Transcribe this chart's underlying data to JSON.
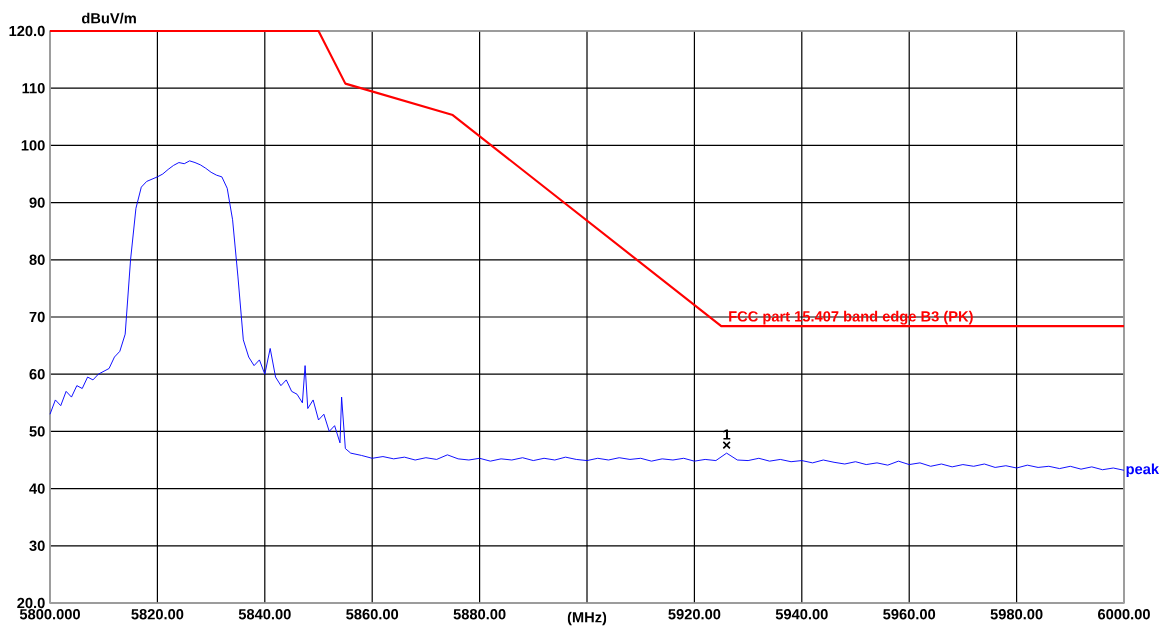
{
  "chart_data": {
    "type": "line",
    "xlabel": "(MHz)",
    "ylabel": "dBuV/m",
    "xlim": [
      5800,
      6000
    ],
    "ylim": [
      20,
      120
    ],
    "xticks": [
      {
        "value": 5800,
        "label": "5800.000"
      },
      {
        "value": 5820,
        "label": "5820.00"
      },
      {
        "value": 5840,
        "label": "5840.00"
      },
      {
        "value": 5860,
        "label": "5860.00"
      },
      {
        "value": 5880,
        "label": "5880.00"
      },
      {
        "value": 5900,
        "label": null
      },
      {
        "value": 5920,
        "label": "5920.00"
      },
      {
        "value": 5940,
        "label": "5940.00"
      },
      {
        "value": 5960,
        "label": "5960.00"
      },
      {
        "value": 5980,
        "label": "5980.00"
      },
      {
        "value": 6000,
        "label": "6000.00"
      }
    ],
    "yticks": [
      {
        "value": 20,
        "label": "20.0"
      },
      30,
      40,
      50,
      60,
      70,
      80,
      90,
      100,
      110,
      {
        "value": 120,
        "label": "120.0"
      }
    ],
    "grid": true,
    "marker": "none",
    "series": [
      {
        "name": "1",
        "type": "scatter",
        "marker": "cross",
        "color": "#000000",
        "x": [
          5926
        ],
        "values": [
          47.6
        ]
      },
      {
        "name": "FCC part 15.407 band edge B3 (PK)",
        "color": "#ff0000",
        "x": [
          5800,
          5850,
          5855,
          5875,
          5925,
          6000
        ],
        "values": [
          120,
          120,
          110.8,
          105.3,
          68.4,
          68.4
        ]
      },
      {
        "name": "peak",
        "color": "#0000ff",
        "x": [
          5800,
          5801,
          5802,
          5803,
          5804,
          5805,
          5806,
          5807,
          5808,
          5809,
          5810,
          5811,
          5812,
          5813,
          5814,
          5815,
          5816,
          5817,
          5818,
          5820,
          5821,
          5822,
          5823,
          5824,
          5825,
          5826,
          5827,
          5828,
          5829,
          5830,
          5831,
          5832,
          5833,
          5834,
          5835,
          5836,
          5837,
          5838,
          5839,
          5840,
          5841,
          5842,
          5843,
          5844,
          5845,
          5846,
          5847,
          5847.5,
          5848,
          5849,
          5850,
          5851,
          5852,
          5853,
          5854,
          5854.3,
          5855,
          5856,
          5858,
          5860,
          5862,
          5864,
          5866,
          5868,
          5870,
          5872,
          5874,
          5876,
          5878,
          5880,
          5882,
          5884,
          5886,
          5888,
          5890,
          5892,
          5894,
          5896,
          5898,
          5900,
          5902,
          5904,
          5906,
          5908,
          5910,
          5912,
          5914,
          5916,
          5918,
          5920,
          5922,
          5924,
          5926,
          5928,
          5930,
          5932,
          5934,
          5936,
          5938,
          5940,
          5942,
          5944,
          5946,
          5948,
          5950,
          5952,
          5954,
          5956,
          5958,
          5960,
          5962,
          5964,
          5966,
          5968,
          5970,
          5972,
          5974,
          5976,
          5978,
          5980,
          5982,
          5984,
          5986,
          5988,
          5990,
          5992,
          5994,
          5996,
          5998,
          6000
        ],
        "values": [
          53.0,
          55.5,
          54.5,
          57,
          56,
          58,
          57.5,
          59.5,
          59,
          60,
          60.5,
          61,
          63,
          64,
          67,
          80,
          89,
          92.7,
          93.7,
          94.5,
          95,
          95.8,
          96.5,
          97,
          96.8,
          97.3,
          97,
          96.6,
          96,
          95.3,
          94.8,
          94.5,
          92.5,
          87,
          77,
          66,
          63,
          61.5,
          62.5,
          60,
          64.5,
          59.5,
          58,
          59,
          57,
          56.5,
          55,
          61.5,
          54,
          55.5,
          52,
          53,
          50,
          51,
          48,
          56,
          47,
          46.2,
          45.8,
          45.3,
          45.6,
          45.2,
          45.5,
          45.0,
          45.4,
          45.1,
          45.9,
          45.2,
          45.0,
          45.3,
          44.8,
          45.2,
          45.0,
          45.4,
          44.9,
          45.3,
          45.0,
          45.5,
          45.1,
          44.9,
          45.3,
          45.0,
          45.4,
          45.1,
          45.3,
          44.8,
          45.2,
          45.0,
          45.3,
          44.8,
          45.1,
          44.9,
          46.2,
          45.0,
          44.9,
          45.3,
          44.8,
          45.1,
          44.7,
          44.9,
          44.5,
          45.0,
          44.6,
          44.3,
          44.7,
          44.2,
          44.5,
          44.1,
          44.8,
          44.2,
          44.5,
          43.9,
          44.3,
          43.8,
          44.2,
          43.9,
          44.3,
          43.7,
          44.0,
          43.6,
          44.1,
          43.7,
          43.9,
          43.5,
          43.9,
          43.4,
          43.8,
          43.3,
          43.6,
          43.2
        ]
      }
    ]
  }
}
